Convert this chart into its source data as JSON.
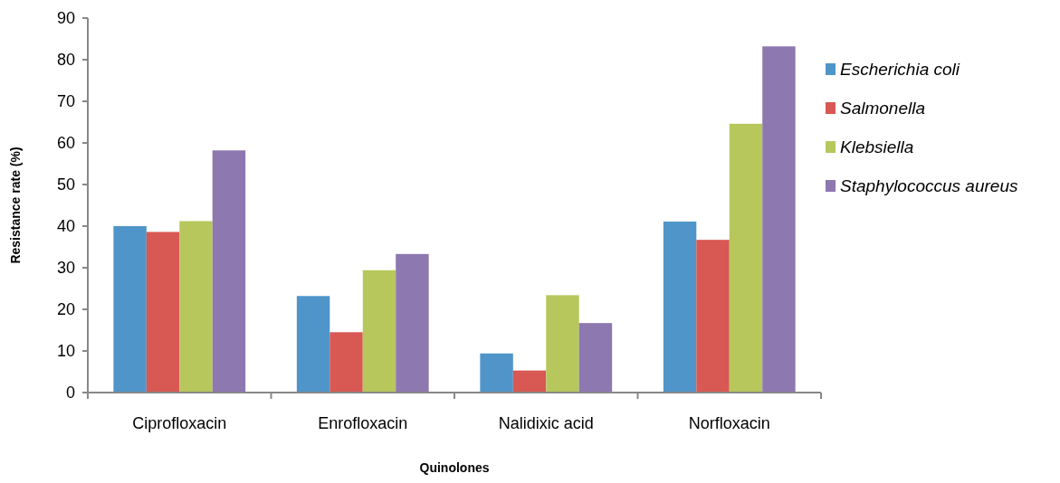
{
  "chart_data": {
    "type": "bar",
    "xlabel": "Quinolones",
    "ylabel": "Resistance rate (%)",
    "categories": [
      "Ciprofloxacin",
      "Enrofloxacin",
      "Nalidixic acid",
      "Norfloxacin"
    ],
    "series": [
      {
        "name": "Escherichia coli",
        "color": "#4f95c9",
        "values": [
          40,
          23.2,
          9.4,
          41.1
        ]
      },
      {
        "name": "Salmonella",
        "color": "#d85853",
        "values": [
          38.6,
          14.5,
          5.3,
          36.7
        ]
      },
      {
        "name": "Klebsiella",
        "color": "#b8c75c",
        "values": [
          41.2,
          29.4,
          23.4,
          64.6
        ]
      },
      {
        "name": "Staphylococcus aureus",
        "color": "#8d78b0",
        "values": [
          58.2,
          33.3,
          16.7,
          83.2
        ]
      }
    ],
    "ylim": [
      0,
      90
    ],
    "yticks": [
      0,
      10,
      20,
      30,
      40,
      50,
      60,
      70,
      80,
      90
    ],
    "grid": false,
    "legend": "right"
  }
}
